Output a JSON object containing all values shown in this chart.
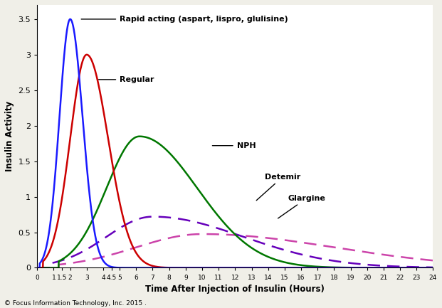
{
  "title": "",
  "xlabel": "Time After Injection of Insulin (Hours)",
  "ylabel": "Insulin Activity",
  "xlim": [
    0,
    24
  ],
  "ylim": [
    0,
    3.7
  ],
  "xticks": [
    0,
    1,
    1.5,
    2,
    3,
    4,
    4.5,
    5,
    6,
    7,
    8,
    9,
    10,
    11,
    12,
    13,
    14,
    15,
    16,
    17,
    18,
    19,
    20,
    21,
    22,
    23,
    24
  ],
  "xtick_labels": [
    "0",
    "1",
    "1.5",
    "2",
    "3",
    "4",
    "4.5",
    "5",
    "6",
    "7",
    "8",
    "9",
    "10",
    "11",
    "12",
    "13",
    "14",
    "15",
    "16",
    "17",
    "18",
    "19",
    "20",
    "21",
    "22",
    "23",
    "24"
  ],
  "yticks": [
    0,
    0.5,
    1,
    1.5,
    2,
    2.5,
    3,
    3.5
  ],
  "copyright": "© Focus Information Technology, Inc. 2015 .",
  "rapid_color": "#1a1aff",
  "regular_color": "#cc0000",
  "nph_color": "#007700",
  "detemir_color": "#6600bb",
  "glargine_color": "#cc44aa",
  "background_color": "#f0efe8",
  "plot_bg_color": "#ffffff",
  "rapid_label": "Rapid acting (aspart, lispro, glulisine)",
  "regular_label": "Regular",
  "nph_label": "NPH",
  "detemir_label": "Detemir",
  "glargine_label": "Glargine"
}
